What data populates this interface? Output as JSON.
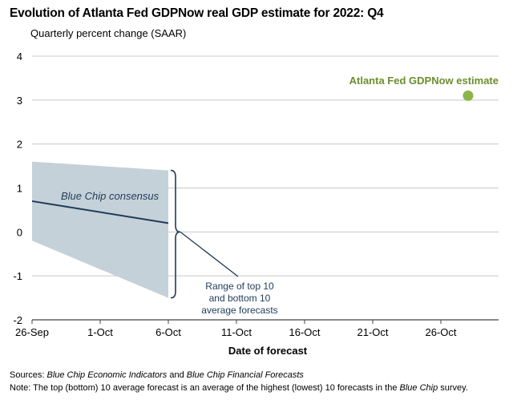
{
  "chart_data": {
    "type": "line",
    "title": "Evolution of Atlanta Fed GDPNow real GDP estimate for 2022: Q4",
    "subtitle": "Quarterly percent change (SAAR)",
    "xlabel": "Date of forecast",
    "ylabel": "",
    "ylim": [
      -2,
      4
    ],
    "yticks": [
      "4",
      "3",
      "2",
      "1",
      "0",
      "-1",
      "-2"
    ],
    "xticks": [
      "26-Sep",
      "1-Oct",
      "6-Oct",
      "11-Oct",
      "16-Oct",
      "21-Oct",
      "26-Oct"
    ],
    "grid": true,
    "colors": {
      "consensus_line": "#1f3b5a",
      "range_band": "#c5d1d8",
      "gdpnow_point": "#8db44a",
      "gdpnow_label": "#6b8e2e",
      "grid": "#c8c8c8"
    },
    "series": [
      {
        "name": "Blue Chip consensus",
        "x": [
          "26-Sep",
          "6-Oct"
        ],
        "values": [
          0.7,
          0.2
        ]
      },
      {
        "name": "Atlanta Fed GDPNow estimate",
        "x": [
          "28-Oct"
        ],
        "values": [
          3.1
        ]
      }
    ],
    "range_band": {
      "x": [
        "26-Sep",
        "6-Oct"
      ],
      "top": [
        1.6,
        1.4
      ],
      "bottom": [
        -0.2,
        -1.5
      ]
    },
    "annotations": {
      "range_label": [
        "Range of top 10",
        "and bottom 10",
        "average forecasts"
      ]
    }
  },
  "footer": {
    "sources_label": "Sources:",
    "sources_src1": "Blue Chip Economic Indicators",
    "sources_and": " and ",
    "sources_src2": "Blue Chip Financial Forecasts",
    "note_label": "Note:",
    "note_text1": " The top (bottom) 10 average forecast is an average of the highest (lowest) 10 forecasts in the ",
    "note_text2": "Blue Chip",
    "note_text3": " survey."
  }
}
